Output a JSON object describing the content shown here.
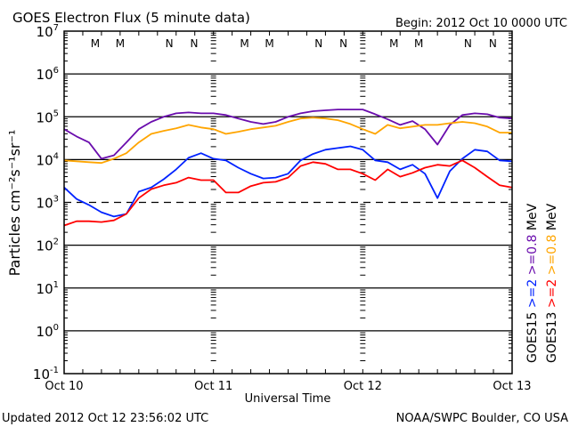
{
  "chart_data": {
    "type": "line",
    "title": "GOES Electron Flux (5 minute data)",
    "begin_label": "Begin: 2012 Oct 10 0000 UTC",
    "xlabel": "Universal Time",
    "ylabel": "Particles cm⁻²s⁻¹sr⁻¹",
    "y_scale": "log",
    "y_unit_note": "values are log10 of flux",
    "ylim_log10": [
      -1,
      7
    ],
    "xlim_hours": [
      0,
      72
    ],
    "x_tick_labels": [
      {
        "hour": 0,
        "label": "Oct 10"
      },
      {
        "hour": 24,
        "label": "Oct 11"
      },
      {
        "hour": 48,
        "label": "Oct 12"
      },
      {
        "hour": 72,
        "label": "Oct 13"
      }
    ],
    "y_tick_labels": [
      {
        "exp": 7,
        "base": "10",
        "sup": "7"
      },
      {
        "exp": 6,
        "base": "10",
        "sup": "6"
      },
      {
        "exp": 5,
        "base": "10",
        "sup": "5"
      },
      {
        "exp": 4,
        "base": "10",
        "sup": "4"
      },
      {
        "exp": 3,
        "base": "10",
        "sup": "3"
      },
      {
        "exp": 2,
        "base": "10",
        "sup": "2"
      },
      {
        "exp": 1,
        "base": "10",
        "sup": "1"
      },
      {
        "exp": 0,
        "base": "10",
        "sup": "0"
      },
      {
        "exp": -1,
        "base": "10",
        "sup": "-1"
      }
    ],
    "threshold_log10": 3,
    "hours": [
      0,
      2,
      4,
      6,
      8,
      10,
      12,
      14,
      16,
      18,
      20,
      22,
      24,
      26,
      28,
      30,
      32,
      34,
      36,
      38,
      40,
      42,
      44,
      46,
      48,
      50,
      52,
      54,
      56,
      58,
      60,
      62,
      64,
      66,
      68,
      70,
      72
    ],
    "series": [
      {
        "name": "GOES15 >=0.8 MeV",
        "color": "#6a0dad",
        "values": [
          4.71,
          4.54,
          4.4,
          4.02,
          4.1,
          4.4,
          4.71,
          4.88,
          5.0,
          5.08,
          5.1,
          5.08,
          5.08,
          5.04,
          4.96,
          4.88,
          4.83,
          4.88,
          5.0,
          5.08,
          5.13,
          5.15,
          5.17,
          5.17,
          5.17,
          5.06,
          4.94,
          4.81,
          4.9,
          4.71,
          4.35,
          4.81,
          5.04,
          5.08,
          5.06,
          4.98,
          4.96
        ]
      },
      {
        "name": "GOES13 >=0.8 MeV",
        "color": "#ffa500",
        "values": [
          3.98,
          3.96,
          3.94,
          3.92,
          4.02,
          4.15,
          4.4,
          4.6,
          4.67,
          4.73,
          4.81,
          4.75,
          4.71,
          4.6,
          4.65,
          4.71,
          4.75,
          4.79,
          4.88,
          4.96,
          4.98,
          4.96,
          4.92,
          4.83,
          4.71,
          4.6,
          4.81,
          4.73,
          4.77,
          4.81,
          4.81,
          4.85,
          4.88,
          4.85,
          4.77,
          4.63,
          4.63
        ]
      },
      {
        "name": "GOES15 >=2 MeV",
        "color": "#0022ff",
        "values": [
          3.35,
          3.08,
          2.94,
          2.77,
          2.67,
          2.73,
          3.25,
          3.35,
          3.54,
          3.77,
          4.04,
          4.15,
          4.02,
          3.98,
          3.81,
          3.67,
          3.56,
          3.58,
          3.67,
          3.98,
          4.13,
          4.23,
          4.27,
          4.31,
          4.23,
          3.98,
          3.94,
          3.77,
          3.88,
          3.67,
          3.1,
          3.73,
          4.02,
          4.23,
          4.19,
          3.98,
          3.96
        ]
      },
      {
        "name": "GOES13 >=2 MeV",
        "color": "#ff0000",
        "values": [
          2.46,
          2.56,
          2.56,
          2.54,
          2.58,
          2.73,
          3.1,
          3.31,
          3.4,
          3.46,
          3.58,
          3.52,
          3.52,
          3.23,
          3.23,
          3.38,
          3.46,
          3.48,
          3.58,
          3.85,
          3.94,
          3.9,
          3.77,
          3.77,
          3.67,
          3.52,
          3.77,
          3.6,
          3.69,
          3.81,
          3.88,
          3.85,
          3.98,
          3.81,
          3.6,
          3.4,
          3.35
        ]
      }
    ],
    "legend": [
      {
        "sat": "GOES15",
        "items": [
          {
            "text": ">=2",
            "color": "#0022ff"
          },
          {
            "text": ">=0.8",
            "color": "#6a0dad"
          }
        ],
        "unit": "MeV"
      },
      {
        "sat": "GOES13",
        "items": [
          {
            "text": ">=2",
            "color": "#ff0000"
          },
          {
            "text": ">=0.8",
            "color": "#ffa500"
          }
        ],
        "unit": "MeV"
      }
    ],
    "legend_placement": "right-outside",
    "markers": [
      {
        "hour": 5.0,
        "label": "M",
        "color": "#ff0000"
      },
      {
        "hour": 9.0,
        "label": "M",
        "color": "#0022ff"
      },
      {
        "hour": 16.9,
        "label": "N",
        "color": "#ff0000"
      },
      {
        "hour": 20.9,
        "label": "N",
        "color": "#0022ff"
      },
      {
        "hour": 29.0,
        "label": "M",
        "color": "#ff0000"
      },
      {
        "hour": 33.0,
        "label": "M",
        "color": "#0022ff"
      },
      {
        "hour": 40.9,
        "label": "N",
        "color": "#ff0000"
      },
      {
        "hour": 44.9,
        "label": "N",
        "color": "#0022ff"
      },
      {
        "hour": 53.0,
        "label": "M",
        "color": "#ff0000"
      },
      {
        "hour": 57.0,
        "label": "M",
        "color": "#0022ff"
      },
      {
        "hour": 64.9,
        "label": "N",
        "color": "#ff0000"
      },
      {
        "hour": 68.9,
        "label": "N",
        "color": "#0022ff"
      }
    ]
  },
  "footer": {
    "updated": "Updated 2012 Oct 12 23:56:02 UTC",
    "credit": "NOAA/SWPC Boulder, CO USA"
  }
}
